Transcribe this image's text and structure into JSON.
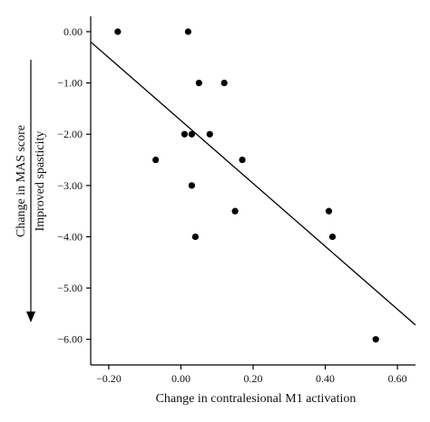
{
  "chart_data": {
    "type": "scatter",
    "title": "",
    "xlabel": "Change in contralesional M1 activation",
    "ylabel": "Change in MAS score",
    "ylabel_secondary": "Improved spasticity",
    "xlim": [
      -0.25,
      0.65
    ],
    "ylim": [
      -6.5,
      0.3
    ],
    "xticks": [
      -0.2,
      0,
      0.2,
      0.4,
      0.6
    ],
    "xtick_labels": [
      "−0.20",
      "0.00",
      "0.20",
      "0.40",
      "0.60"
    ],
    "yticks": [
      0,
      -1,
      -2,
      -3,
      -4,
      -5,
      -6
    ],
    "ytick_labels": [
      "0.00",
      "−1.00",
      "−2.00",
      "−3.00",
      "−4.00",
      "−5.00",
      "−6.00"
    ],
    "grid": false,
    "points": [
      {
        "x": -0.175,
        "y": 0
      },
      {
        "x": 0.02,
        "y": 0
      },
      {
        "x": 0.05,
        "y": -1
      },
      {
        "x": 0.12,
        "y": -1
      },
      {
        "x": 0.01,
        "y": -2
      },
      {
        "x": 0.03,
        "y": -2
      },
      {
        "x": 0.08,
        "y": -2
      },
      {
        "x": -0.07,
        "y": -2.5
      },
      {
        "x": 0.17,
        "y": -2.5
      },
      {
        "x": 0.03,
        "y": -3
      },
      {
        "x": 0.15,
        "y": -3.5
      },
      {
        "x": 0.41,
        "y": -3.5
      },
      {
        "x": 0.04,
        "y": -4
      },
      {
        "x": 0.42,
        "y": -4
      },
      {
        "x": 0.54,
        "y": -6
      }
    ],
    "fit_line": {
      "x": [
        -0.25,
        0.65
      ],
      "y": [
        -0.2,
        -5.72
      ]
    },
    "colors": {
      "points": "#000000",
      "line": "#000000"
    }
  }
}
